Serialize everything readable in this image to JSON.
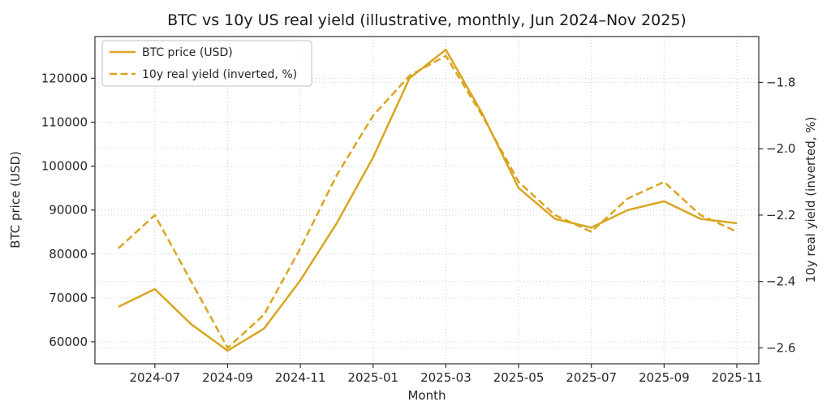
{
  "chart_data": {
    "type": "line",
    "title": "BTC vs 10y US real yield (illustrative, monthly, Jun 2024–Nov 2025)",
    "xlabel": "Month",
    "grid": true,
    "legend_position": "upper-left",
    "x": [
      "2024-06",
      "2024-07",
      "2024-08",
      "2024-09",
      "2024-10",
      "2024-11",
      "2024-12",
      "2025-01",
      "2025-02",
      "2025-03",
      "2025-04",
      "2025-05",
      "2025-06",
      "2025-07",
      "2025-08",
      "2025-09",
      "2025-10",
      "2025-11"
    ],
    "x_axis": {
      "label": "Month",
      "tick_labels": [
        "2024-07",
        "2024-09",
        "2024-11",
        "2025-01",
        "2025-03",
        "2025-05",
        "2025-07",
        "2025-09",
        "2025-11"
      ]
    },
    "left_axis": {
      "label": "BTC price (USD)",
      "tick_values": [
        60000,
        70000,
        80000,
        90000,
        100000,
        110000,
        120000
      ],
      "tick_labels": [
        "60000",
        "70000",
        "80000",
        "90000",
        "100000",
        "110000",
        "120000"
      ],
      "range": [
        55000,
        129500
      ]
    },
    "right_axis": {
      "label": "10y real yield (inverted, %)",
      "tick_values": [
        -1.8,
        -2.0,
        -2.2,
        -2.4,
        -2.6
      ],
      "tick_labels": [
        "−1.8",
        "−2.0",
        "−2.2",
        "−2.4",
        "−2.6"
      ],
      "range": [
        -2.648,
        -1.662
      ]
    },
    "series": [
      {
        "name": "BTC price (USD)",
        "axis": "left",
        "style": "solid",
        "color": "#DAA520",
        "values": [
          68000,
          72000,
          64000,
          58000,
          63000,
          74000,
          87000,
          102000,
          120000,
          126500,
          112000,
          95000,
          88000,
          86000,
          90000,
          92000,
          88000,
          87000
        ]
      },
      {
        "name": "10y real yield (inverted, %)",
        "axis": "right",
        "style": "dashed",
        "color": "#DAA520",
        "values": [
          -2.3,
          -2.2,
          -2.4,
          -2.6,
          -2.5,
          -2.3,
          -2.08,
          -1.9,
          -1.78,
          -1.72,
          -1.9,
          -2.1,
          -2.2,
          -2.25,
          -2.15,
          -2.1,
          -2.2,
          -2.25
        ]
      }
    ]
  }
}
